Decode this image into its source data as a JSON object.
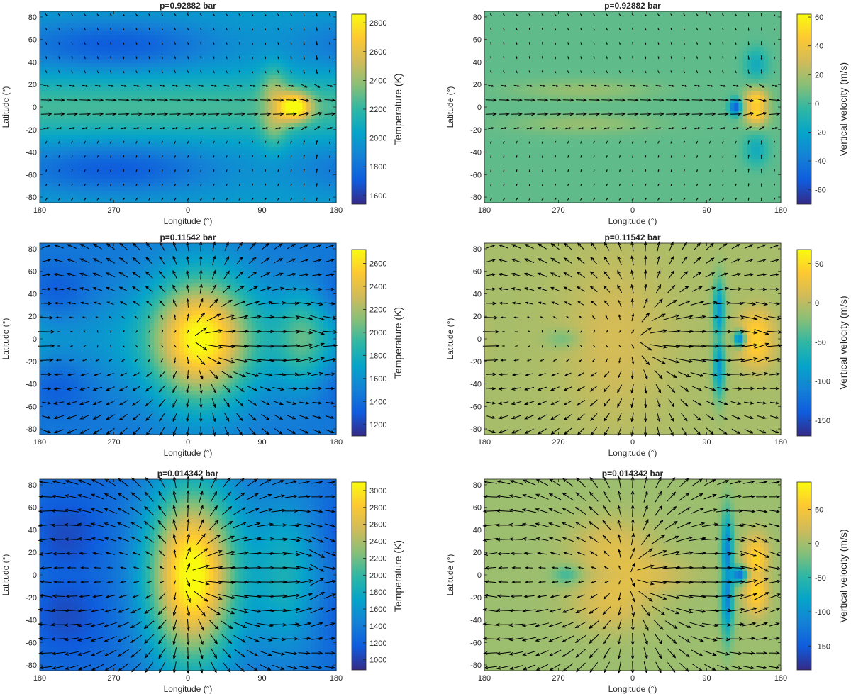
{
  "colors": {
    "parula": [
      "#352a87",
      "#0f5cdd",
      "#1481d6",
      "#06a4ca",
      "#2eb7a4",
      "#87bf77",
      "#d1bb59",
      "#fec832",
      "#f9fb0e"
    ],
    "arrow": "#000000",
    "axis": "#262626"
  },
  "chart_data": [
    {
      "type": "heatmap",
      "title": "p=0.92882 bar",
      "field": "temperature",
      "level": 0,
      "xlabel": "Longitude (°)",
      "ylabel": "Latitude (°)",
      "xticks": [
        "180",
        "270",
        "0",
        "90",
        "180"
      ],
      "yticks": [
        "80",
        "60",
        "40",
        "20",
        "0",
        "-20",
        "-40",
        "-60",
        "-80"
      ],
      "ylim": [
        -85,
        85
      ],
      "colorbar": {
        "label": "Temperature (K)",
        "range": [
          1540,
          2860
        ],
        "ticks": [
          "2800",
          "2600",
          "2400",
          "2200",
          "2000",
          "1800",
          "1600"
        ]
      },
      "hotspot_longitude": 130
    },
    {
      "type": "heatmap",
      "title": "p=0.92882 bar",
      "field": "vertical_velocity",
      "level": 0,
      "xlabel": "Longitude (°)",
      "ylabel": "Latitude (°)",
      "xticks": [
        "180",
        "270",
        "0",
        "90",
        "180"
      ],
      "yticks": [
        "80",
        "60",
        "40",
        "20",
        "0",
        "-20",
        "-40",
        "-60",
        "-80"
      ],
      "ylim": [
        -85,
        85
      ],
      "colorbar": {
        "label": "Vertical velocity (m/s)",
        "range": [
          -70,
          62
        ],
        "ticks": [
          "60",
          "40",
          "20",
          "0",
          "-20",
          "-40",
          "-60"
        ]
      }
    },
    {
      "type": "heatmap",
      "title": "p=0.11542 bar",
      "field": "temperature",
      "level": 1,
      "xlabel": "Longitude (°)",
      "ylabel": "Latitude (°)",
      "xticks": [
        "180",
        "270",
        "0",
        "90",
        "180"
      ],
      "yticks": [
        "80",
        "60",
        "40",
        "20",
        "0",
        "-20",
        "-40",
        "-60",
        "-80"
      ],
      "ylim": [
        -85,
        85
      ],
      "colorbar": {
        "label": "Temperature (K)",
        "range": [
          1100,
          2720
        ],
        "ticks": [
          "2600",
          "2400",
          "2200",
          "2000",
          "1800",
          "1600",
          "1400",
          "1200"
        ]
      },
      "hotspot_longitude": 20
    },
    {
      "type": "heatmap",
      "title": "p=0.11542 bar",
      "field": "vertical_velocity",
      "level": 1,
      "xlabel": "Longitude (°)",
      "ylabel": "Latitude (°)",
      "xticks": [
        "180",
        "270",
        "0",
        "90",
        "180"
      ],
      "yticks": [
        "80",
        "60",
        "40",
        "20",
        "0",
        "-20",
        "-40",
        "-60",
        "-80"
      ],
      "ylim": [
        -85,
        85
      ],
      "colorbar": {
        "label": "Vertical velocity (m/s)",
        "range": [
          -170,
          68
        ],
        "ticks": [
          "50",
          "0",
          "-50",
          "-100",
          "-150"
        ]
      }
    },
    {
      "type": "heatmap",
      "title": "p=0.014342 bar",
      "field": "temperature",
      "level": 2,
      "xlabel": "Longitude (°)",
      "ylabel": "Latitude (°)",
      "xticks": [
        "180",
        "270",
        "0",
        "90",
        "180"
      ],
      "yticks": [
        "80",
        "60",
        "40",
        "20",
        "0",
        "-20",
        "-40",
        "-60",
        "-80"
      ],
      "ylim": [
        -85,
        85
      ],
      "colorbar": {
        "label": "Temperature (K)",
        "range": [
          880,
          3100
        ],
        "ticks": [
          "3000",
          "2800",
          "2600",
          "2400",
          "2200",
          "2000",
          "1800",
          "1600",
          "1400",
          "1200",
          "1000"
        ]
      },
      "hotspot_longitude": 10
    },
    {
      "type": "heatmap",
      "title": "p=0.014342 bar",
      "field": "vertical_velocity",
      "level": 2,
      "xlabel": "Longitude (°)",
      "ylabel": "Latitude (°)",
      "xticks": [
        "180",
        "270",
        "0",
        "90",
        "180"
      ],
      "yticks": [
        "80",
        "60",
        "40",
        "20",
        "0",
        "-20",
        "-40",
        "-60",
        "-80"
      ],
      "ylim": [
        -85,
        85
      ],
      "colorbar": {
        "label": "Vertical velocity (m/s)",
        "range": [
          -185,
          90
        ],
        "ticks": [
          "50",
          "0",
          "-50",
          "-100",
          "-150"
        ]
      }
    }
  ]
}
